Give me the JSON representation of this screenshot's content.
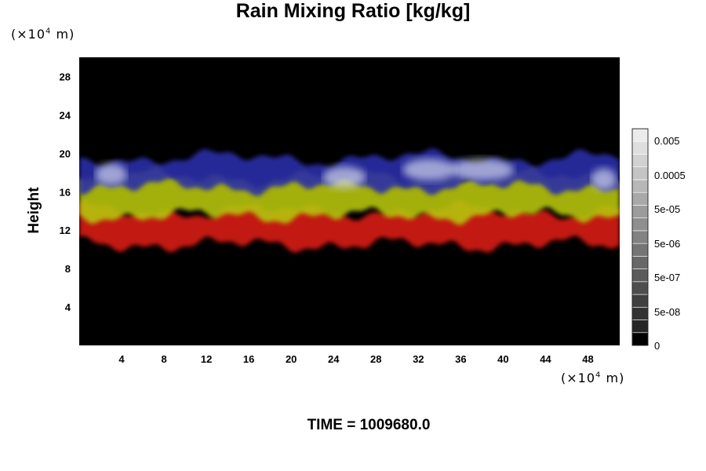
{
  "chart_data": {
    "type": "heatmap",
    "title": "Rain Mixing Ratio [kg/kg]",
    "ylabel": "Height",
    "x_unit": "(×10",
    "x_unit_exp": "4",
    "x_unit_suffix": " m)",
    "y_unit": "(×10",
    "y_unit_exp": "4",
    "y_unit_suffix": " m)",
    "xlim": [
      0,
      51
    ],
    "ylim": [
      0,
      30
    ],
    "x_ticks": [
      "4",
      "8",
      "12",
      "16",
      "20",
      "24",
      "28",
      "32",
      "36",
      "40",
      "44",
      "48"
    ],
    "y_ticks": [
      "4",
      "8",
      "12",
      "16",
      "20",
      "24",
      "28"
    ],
    "colorbar_labels": [
      "0.005",
      "0.0005",
      "5e-05",
      "5e-06",
      "5e-07",
      "5e-08",
      "0"
    ],
    "bands": [
      {
        "color": "#d81a14",
        "y_range": [
          10.5,
          14.0
        ]
      },
      {
        "color": "#b5c40c",
        "y_range": [
          13.5,
          17.5
        ]
      },
      {
        "color": "#2a2fa8",
        "y_range": [
          16.5,
          19.5
        ]
      }
    ],
    "background_color": "#000000"
  },
  "footer": {
    "time_label": "TIME = 1009680.0"
  }
}
